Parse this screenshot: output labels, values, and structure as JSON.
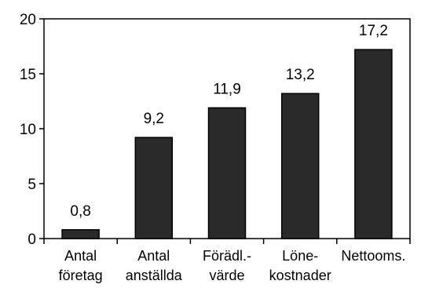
{
  "chart_data": {
    "type": "bar",
    "title": "",
    "xlabel": "",
    "ylabel": "",
    "categories": [
      [
        "Antal",
        "företag"
      ],
      [
        "Antal",
        "anställda"
      ],
      [
        "Förädl.-",
        "värde"
      ],
      [
        "Löne-",
        "kostnader"
      ],
      [
        "Nettooms."
      ]
    ],
    "values": [
      0.8,
      9.2,
      11.9,
      13.2,
      17.2
    ],
    "data_labels": [
      "0,8",
      "9,2",
      "11,9",
      "13,2",
      "17,2"
    ],
    "ylim": [
      0,
      20
    ],
    "yticks": [
      0,
      5,
      10,
      15,
      20
    ],
    "ytick_labels": [
      "0",
      "5",
      "10",
      "15",
      "20"
    ],
    "grid": false,
    "legend": "none",
    "bar_color": "#2a2a2a"
  }
}
